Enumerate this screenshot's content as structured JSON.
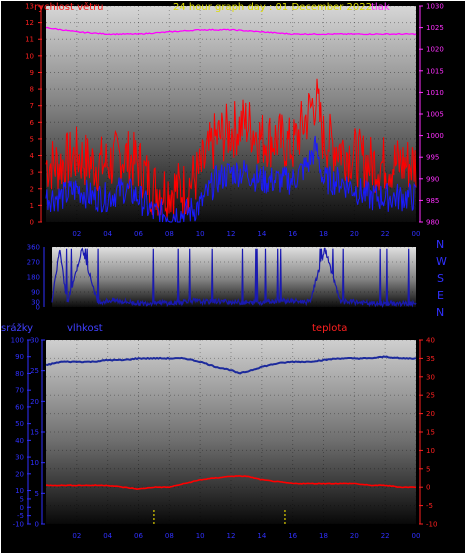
{
  "top_panel": {
    "left_label": "rychlost větru",
    "title": "24 hour graph day : 01 December 2022",
    "right_label": "tlak"
  },
  "direction_panel": {
    "compass_labels": [
      "N",
      "W",
      "S",
      "E",
      "N"
    ]
  },
  "bottom_panel": {
    "left_outer_label": "srážky",
    "left_inner_label": "vlhkost",
    "right_label": "teplota"
  },
  "colors": {
    "frame": "#ffffff",
    "wind": "#ff0000",
    "wind_avg": "#1a1aff",
    "pressure": "#ff00ff",
    "direction": "#1a1ab0",
    "humidity": "#1c2a9c",
    "temperature": "#ff0000",
    "rain": "#e0d000",
    "blue_text": "#3030ff",
    "yellow_text": "#dddd00"
  },
  "chart_data": [
    {
      "type": "line",
      "name": "wind-pressure",
      "x_ticks": [
        "02",
        "04",
        "06",
        "08",
        "10",
        "12",
        "14",
        "16",
        "18",
        "20",
        "22",
        "00"
      ],
      "y_left": {
        "label": "rychlost větru",
        "ylim": [
          0,
          13
        ],
        "ticks": [
          0,
          1,
          2,
          3,
          4,
          5,
          6,
          7,
          8,
          9,
          10,
          11,
          12,
          13
        ]
      },
      "y_right": {
        "label": "tlak",
        "ylim": [
          980,
          1030
        ],
        "ticks": [
          980,
          985,
          990,
          995,
          1000,
          1005,
          1010,
          1015,
          1020,
          1025,
          1030
        ]
      },
      "series": [
        {
          "color": "#ff0000",
          "axis": "left",
          "style": "noisy",
          "x": [
            0,
            1,
            2,
            3,
            4,
            5,
            6,
            7,
            8,
            9,
            10,
            11,
            12,
            13,
            14,
            15,
            16,
            17,
            17.5,
            18,
            19,
            20,
            21,
            22,
            23,
            24
          ],
          "values": [
            3.5,
            3.5,
            4,
            3.5,
            3.5,
            4,
            3.5,
            2,
            2,
            2,
            3,
            5,
            5.5,
            6,
            5,
            5,
            4.5,
            6.5,
            7.5,
            5,
            4.5,
            4,
            3.5,
            3.5,
            3.5,
            3.5
          ]
        },
        {
          "color": "#1a1aff",
          "axis": "left",
          "style": "noisy",
          "x": [
            0,
            1,
            2,
            3,
            4,
            5,
            6,
            7,
            8,
            9,
            10,
            11,
            12,
            13,
            14,
            15,
            16,
            17,
            17.5,
            18,
            19,
            20,
            21,
            22,
            23,
            24
          ],
          "values": [
            1.5,
            1.5,
            2,
            1.5,
            1.5,
            2,
            1.5,
            0.5,
            0.5,
            0.5,
            1,
            2.5,
            3,
            3,
            2.5,
            2.5,
            2.5,
            3.5,
            4.5,
            2.5,
            2.5,
            2,
            1.5,
            1.5,
            1.5,
            1.5
          ]
        },
        {
          "color": "#ff00ff",
          "axis": "right",
          "style": "smooth",
          "x": [
            0,
            2,
            4,
            6,
            8,
            10,
            12,
            14,
            16,
            18,
            20,
            22,
            24
          ],
          "values": [
            1025,
            1024,
            1023.5,
            1023.5,
            1024,
            1024.5,
            1024.5,
            1024,
            1023.5,
            1023.5,
            1023.5,
            1023.5,
            1023.5
          ]
        }
      ]
    },
    {
      "type": "line",
      "name": "wind-direction",
      "x_ticks": [],
      "y_left": {
        "ylim": [
          0,
          360
        ],
        "ticks": [
          0,
          30,
          90,
          180,
          270,
          360
        ]
      },
      "series": [
        {
          "color": "#1a1ab0",
          "style": "direction",
          "x": [
            0,
            0.5,
            1,
            2,
            3,
            4,
            5,
            6,
            7,
            8,
            9,
            10,
            11,
            12,
            13,
            14,
            15,
            16,
            17,
            18,
            19,
            20,
            21,
            22,
            23,
            24
          ],
          "values": [
            30,
            350,
            20,
            350,
            30,
            40,
            30,
            20,
            30,
            20,
            40,
            30,
            35,
            30,
            25,
            30,
            40,
            35,
            30,
            350,
            30,
            30,
            20,
            20,
            20,
            20
          ]
        }
      ]
    },
    {
      "type": "line",
      "name": "humidity-temperature-rain",
      "x_ticks": [
        "02",
        "04",
        "06",
        "08",
        "10",
        "12",
        "14",
        "16",
        "18",
        "20",
        "22",
        "00"
      ],
      "y_outer": {
        "label": "srážky",
        "ylim": [
          -10,
          100
        ],
        "ticks": [
          100,
          90,
          80,
          70,
          60,
          50,
          40,
          30,
          20,
          10,
          5,
          0,
          -5,
          -10
        ]
      },
      "y_left": {
        "label": "vlhkost",
        "ylim": [
          0,
          30
        ],
        "ticks": [
          30,
          25,
          20,
          15,
          10,
          5,
          0
        ]
      },
      "y_right": {
        "label": "teplota",
        "ylim": [
          -10,
          40
        ],
        "ticks": [
          40,
          35,
          30,
          25,
          20,
          15,
          10,
          5,
          0,
          -5,
          -10
        ]
      },
      "series": [
        {
          "color": "#1c2a9c",
          "axis": "left_pct",
          "x": [
            0,
            1,
            2,
            3,
            4,
            5,
            6,
            7,
            8,
            9,
            10,
            11,
            12,
            12.5,
            13,
            14,
            15,
            16,
            17,
            18,
            19,
            20,
            21,
            22,
            23,
            24
          ],
          "values": [
            85,
            87,
            87,
            87,
            88,
            88,
            89,
            89,
            89,
            89,
            87,
            84,
            82,
            80,
            81,
            84,
            86,
            87,
            87,
            88,
            89,
            89,
            89,
            90,
            89,
            89
          ]
        },
        {
          "color": "#ff0000",
          "axis": "right",
          "x": [
            0,
            1,
            2,
            3,
            4,
            5,
            6,
            7,
            8,
            9,
            10,
            11,
            12,
            13,
            14,
            15,
            16,
            17,
            18,
            19,
            20,
            21,
            22,
            23,
            24
          ],
          "values": [
            0.5,
            0.5,
            0.5,
            0.5,
            0.5,
            0,
            -0.5,
            0,
            0,
            1,
            2,
            2.5,
            3,
            3,
            2,
            1.5,
            1,
            1,
            1,
            1,
            1,
            0.5,
            0.5,
            0,
            0
          ]
        }
      ],
      "rain_marks": [
        {
          "x": 7,
          "values": 0.5
        },
        {
          "x": 15.5,
          "values": 0.5
        }
      ]
    }
  ]
}
